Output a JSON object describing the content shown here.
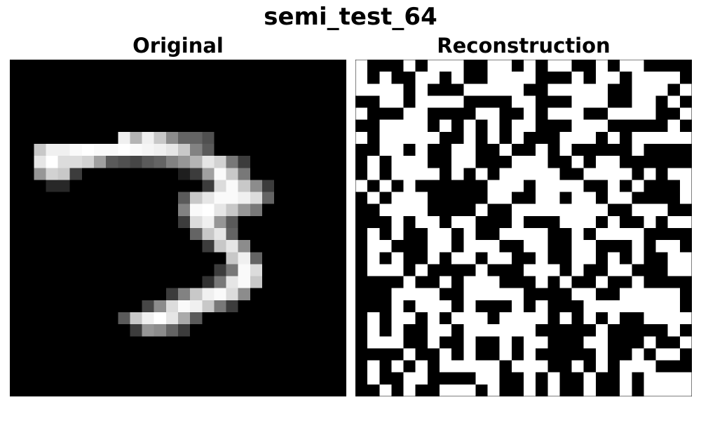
{
  "figure": {
    "title": "semi_test_64"
  },
  "panels": [
    {
      "title": "Original",
      "image": "mnist-digit-3-grayscale"
    },
    {
      "title": "Reconstruction",
      "image": "binary-noise-pattern"
    }
  ],
  "original_cells": [
    [
      6,
      9,
      240
    ],
    [
      6,
      10,
      180
    ],
    [
      6,
      11,
      240
    ],
    [
      6,
      12,
      200
    ],
    [
      6,
      13,
      140
    ],
    [
      6,
      14,
      100
    ],
    [
      6,
      15,
      100
    ],
    [
      6,
      16,
      80
    ],
    [
      7,
      2,
      200
    ],
    [
      7,
      3,
      240
    ],
    [
      7,
      4,
      240
    ],
    [
      7,
      5,
      250
    ],
    [
      7,
      6,
      255
    ],
    [
      7,
      7,
      250
    ],
    [
      7,
      8,
      250
    ],
    [
      7,
      9,
      255
    ],
    [
      7,
      10,
      250
    ],
    [
      7,
      11,
      245
    ],
    [
      7,
      12,
      240
    ],
    [
      7,
      13,
      230
    ],
    [
      7,
      14,
      200
    ],
    [
      7,
      15,
      130
    ],
    [
      7,
      16,
      90
    ],
    [
      8,
      2,
      230
    ],
    [
      8,
      3,
      255
    ],
    [
      8,
      4,
      220
    ],
    [
      8,
      5,
      220
    ],
    [
      8,
      6,
      210
    ],
    [
      8,
      7,
      160
    ],
    [
      8,
      8,
      90
    ],
    [
      8,
      9,
      80
    ],
    [
      8,
      10,
      70
    ],
    [
      8,
      11,
      90
    ],
    [
      8,
      12,
      100
    ],
    [
      8,
      13,
      130
    ],
    [
      8,
      14,
      150
    ],
    [
      8,
      15,
      180
    ],
    [
      8,
      16,
      230
    ],
    [
      8,
      17,
      210
    ],
    [
      8,
      18,
      120
    ],
    [
      8,
      19,
      60
    ],
    [
      9,
      2,
      150
    ],
    [
      9,
      3,
      210
    ],
    [
      9,
      4,
      200
    ],
    [
      9,
      5,
      60
    ],
    [
      9,
      14,
      30
    ],
    [
      9,
      15,
      60
    ],
    [
      9,
      16,
      160
    ],
    [
      9,
      17,
      250
    ],
    [
      9,
      18,
      200
    ],
    [
      9,
      19,
      120
    ],
    [
      10,
      3,
      40
    ],
    [
      10,
      4,
      40
    ],
    [
      10,
      16,
      60
    ],
    [
      10,
      17,
      220
    ],
    [
      10,
      18,
      250
    ],
    [
      10,
      19,
      200
    ],
    [
      10,
      20,
      140
    ],
    [
      10,
      21,
      60
    ],
    [
      11,
      14,
      90
    ],
    [
      11,
      15,
      200
    ],
    [
      11,
      16,
      230
    ],
    [
      11,
      17,
      250
    ],
    [
      11,
      18,
      250
    ],
    [
      11,
      19,
      240
    ],
    [
      11,
      20,
      220
    ],
    [
      11,
      21,
      100
    ],
    [
      12,
      14,
      130
    ],
    [
      12,
      15,
      250
    ],
    [
      12,
      16,
      255
    ],
    [
      12,
      17,
      230
    ],
    [
      12,
      18,
      200
    ],
    [
      12,
      19,
      150
    ],
    [
      12,
      20,
      120
    ],
    [
      13,
      14,
      60
    ],
    [
      13,
      15,
      220
    ],
    [
      13,
      16,
      240
    ],
    [
      13,
      17,
      150
    ],
    [
      13,
      18,
      90
    ],
    [
      14,
      15,
      100
    ],
    [
      14,
      16,
      200
    ],
    [
      14,
      17,
      230
    ],
    [
      14,
      18,
      100
    ],
    [
      15,
      16,
      60
    ],
    [
      15,
      17,
      200
    ],
    [
      15,
      18,
      230
    ],
    [
      15,
      19,
      140
    ],
    [
      16,
      18,
      200
    ],
    [
      16,
      19,
      240
    ],
    [
      16,
      20,
      100
    ],
    [
      17,
      17,
      60
    ],
    [
      17,
      18,
      120
    ],
    [
      17,
      19,
      250
    ],
    [
      17,
      20,
      220
    ],
    [
      18,
      16,
      50
    ],
    [
      18,
      17,
      120
    ],
    [
      18,
      18,
      230
    ],
    [
      18,
      19,
      250
    ],
    [
      18,
      20,
      200
    ],
    [
      19,
      13,
      60
    ],
    [
      19,
      14,
      130
    ],
    [
      19,
      15,
      200
    ],
    [
      19,
      16,
      240
    ],
    [
      19,
      17,
      250
    ],
    [
      19,
      18,
      220
    ],
    [
      19,
      19,
      140
    ],
    [
      20,
      11,
      70
    ],
    [
      20,
      12,
      140
    ],
    [
      20,
      13,
      220
    ],
    [
      20,
      14,
      250
    ],
    [
      20,
      15,
      240
    ],
    [
      20,
      16,
      200
    ],
    [
      20,
      17,
      120
    ],
    [
      20,
      18,
      60
    ],
    [
      21,
      9,
      90
    ],
    [
      21,
      10,
      200
    ],
    [
      21,
      11,
      240
    ],
    [
      21,
      12,
      255
    ],
    [
      21,
      13,
      230
    ],
    [
      21,
      14,
      170
    ],
    [
      21,
      15,
      90
    ],
    [
      22,
      10,
      60
    ],
    [
      22,
      11,
      150
    ],
    [
      22,
      12,
      140
    ],
    [
      22,
      13,
      100
    ],
    [
      22,
      14,
      60
    ]
  ],
  "reconstruction_rows": [
    "1000101110011010110010110000",
    "1010011010011110001011011110",
    "1111010001111100111110011101",
    "0011011110000110001110011010",
    "1000110000110010111001111001",
    "0011110101010110001110000010",
    "1011111001010100011101011111",
    "0011010011001001010000010000",
    "0101110011000111001011000000",
    "0101111010101111100111101011",
    "1010100000011101111001010001",
    "0101110000011001101101100001",
    "0011110000100111111110011100",
    "0001011011000100011101001011",
    "0101001101001111001011110000",
    "0110001101110011001100010110",
    "0101001011011001001101010011",
    "0111010000100011101001100011",
    "0000100101110001010010010000",
    "0001111001111100001100111110",
    "0001011101000101000111111110",
    "0101101011101111010101001111",
    "0101001101111110000010000010",
    "0111001001001011000110001001",
    "0000100101001010000010010110",
    "0101010111110111001010111000",
    "0100110000110010100100101111",
    "0010100111010010100100101111"
  ]
}
